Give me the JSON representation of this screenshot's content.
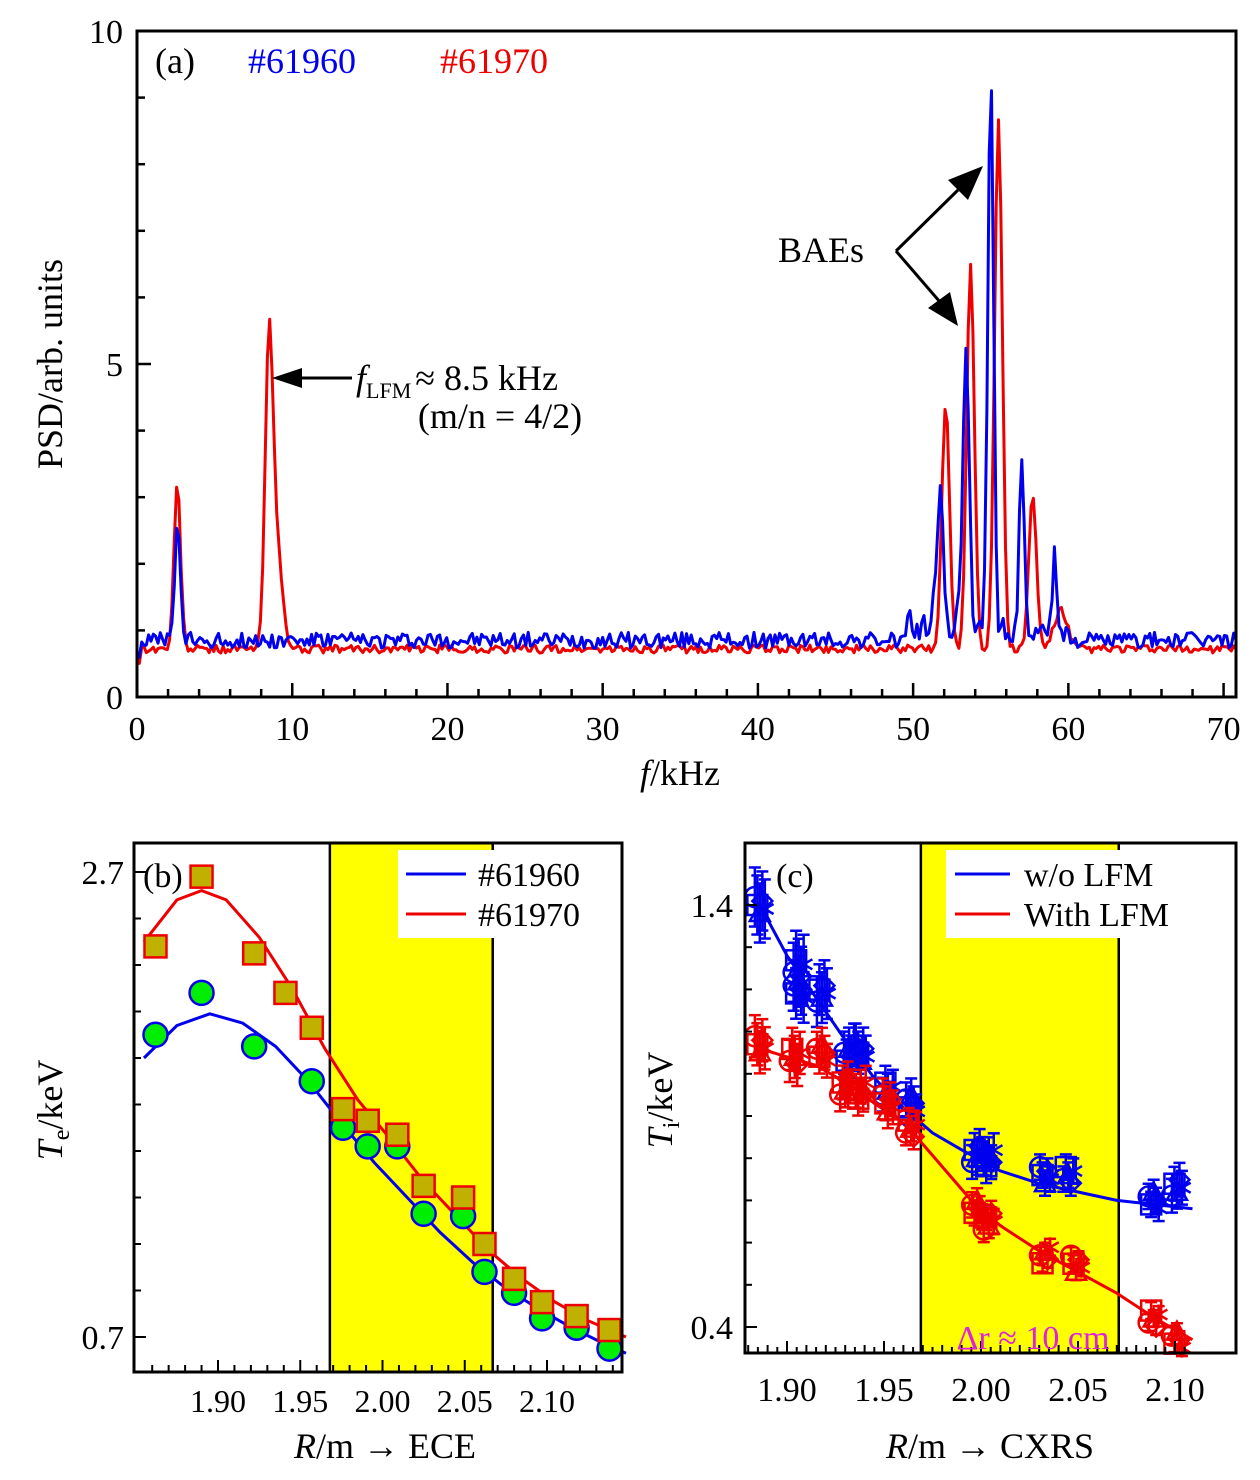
{
  "colors": {
    "blue": "#0000ee",
    "red": "#ee0000",
    "highlight": "#ffff00",
    "green_marker": "#00ee00",
    "square_fill": "#c0b000",
    "annotation_magenta": "#e020e0"
  },
  "chart_data": [
    {
      "id": "a",
      "type": "line",
      "panel_label": "(a)",
      "title": "",
      "xlabel": "f/kHz",
      "ylabel": "PSD/arb. units",
      "xlim": [
        0,
        70.8
      ],
      "ylim": [
        0,
        10
      ],
      "xticks": [
        0,
        10,
        20,
        30,
        40,
        50,
        60,
        70
      ],
      "xtick_labels": [
        "0",
        "10",
        "20",
        "30",
        "40",
        "50",
        "60",
        "70"
      ],
      "yticks": [
        0,
        5,
        10
      ],
      "ytick_labels": [
        "0",
        "5",
        "10"
      ],
      "grid": false,
      "legend_placement": "top-left (colored text)",
      "legend": [
        {
          "name": "#61960",
          "color": "#0000ee"
        },
        {
          "name": "#61970",
          "color": "#ee0000"
        }
      ],
      "annotations": [
        {
          "text_main": "f",
          "text_sub": "LFM",
          "text_rest": "≈ 8.5 kHz",
          "text_line2": "(m/n = 4/2)",
          "points_to_x": 8.5,
          "points_to_y": 5.0
        },
        {
          "text": "BAEs",
          "points_to": [
            [
              55.0,
              7.8
            ],
            [
              53.5,
              5.6
            ]
          ]
        }
      ],
      "series": [
        {
          "name": "#61960",
          "color": "#0000ee",
          "baseline": 0.85,
          "noise": 0.12,
          "peaks": [
            {
              "x": 2.6,
              "y": 2.6,
              "w": 0.25
            },
            {
              "x": 51.5,
              "y": 1.6,
              "w": 0.3
            },
            {
              "x": 51.8,
              "y": 2.9,
              "w": 0.2
            },
            {
              "x": 53.4,
              "y": 4.9,
              "w": 0.3
            },
            {
              "x": 55.0,
              "y": 9.3,
              "w": 0.25
            },
            {
              "x": 57.0,
              "y": 3.5,
              "w": 0.22
            },
            {
              "x": 59.1,
              "y": 1.9,
              "w": 0.18
            }
          ]
        },
        {
          "name": "#61970",
          "color": "#ee0000",
          "baseline": 0.72,
          "noise": 0.06,
          "peaks": [
            {
              "x": 2.6,
              "y": 3.2,
              "w": 0.3
            },
            {
              "x": 8.5,
              "y": 5.15,
              "w": 0.35
            },
            {
              "x": 9.0,
              "y": 2.2,
              "w": 0.5
            },
            {
              "x": 52.1,
              "y": 4.4,
              "w": 0.35
            },
            {
              "x": 53.7,
              "y": 6.5,
              "w": 0.35
            },
            {
              "x": 55.5,
              "y": 8.7,
              "w": 0.35
            },
            {
              "x": 57.7,
              "y": 3.0,
              "w": 0.35
            },
            {
              "x": 59.5,
              "y": 1.3,
              "w": 0.6
            }
          ]
        }
      ]
    },
    {
      "id": "b",
      "type": "scatter",
      "panel_label": "(b)",
      "xlabel": "R/m → ECE",
      "ylabel": "Te/keV",
      "xlim": [
        1.855,
        2.148
      ],
      "ylim": [
        0.55,
        2.78
      ],
      "xticks": [
        1.9,
        1.95,
        2.0,
        2.05,
        2.1
      ],
      "xtick_labels": [
        "1.90",
        "1.95",
        "2.00",
        "2.05",
        "2.10"
      ],
      "yticks": [
        0.7,
        2.7
      ],
      "ytick_labels": [
        "0.7",
        "2.7"
      ],
      "highlight_band_x": [
        1.968,
        2.067
      ],
      "legend_placement": "top-right",
      "legend": [
        {
          "name": "#61960",
          "color": "#0000ee"
        },
        {
          "name": "#61970",
          "color": "#ee0000"
        }
      ],
      "series": [
        {
          "name": "#61960",
          "marker": "circle",
          "color": "#0000ee",
          "fill": "#00ee00",
          "points": [
            [
              1.862,
              2.0
            ],
            [
              1.89,
              2.18
            ],
            [
              1.922,
              1.95
            ],
            [
              1.957,
              1.8
            ],
            [
              1.976,
              1.6
            ],
            [
              1.991,
              1.52
            ],
            [
              2.009,
              1.52
            ],
            [
              2.025,
              1.23
            ],
            [
              2.049,
              1.22
            ],
            [
              2.062,
              0.98
            ],
            [
              2.08,
              0.89
            ],
            [
              2.097,
              0.78
            ],
            [
              2.118,
              0.74
            ],
            [
              2.138,
              0.65
            ]
          ],
          "fit": [
            [
              1.855,
              1.9
            ],
            [
              1.875,
              2.04
            ],
            [
              1.895,
              2.09
            ],
            [
              1.915,
              2.05
            ],
            [
              1.935,
              1.95
            ],
            [
              1.955,
              1.8
            ],
            [
              1.975,
              1.62
            ],
            [
              1.995,
              1.45
            ],
            [
              2.015,
              1.3
            ],
            [
              2.035,
              1.15
            ],
            [
              2.055,
              1.02
            ],
            [
              2.075,
              0.91
            ],
            [
              2.095,
              0.82
            ],
            [
              2.115,
              0.74
            ],
            [
              2.135,
              0.67
            ],
            [
              2.148,
              0.63
            ]
          ]
        },
        {
          "name": "#61970",
          "marker": "square",
          "color": "#ee0000",
          "fill": "#c0b000",
          "points": [
            [
              1.862,
              2.38
            ],
            [
              1.89,
              2.68
            ],
            [
              1.922,
              2.35
            ],
            [
              1.941,
              2.18
            ],
            [
              1.957,
              2.03
            ],
            [
              1.976,
              1.68
            ],
            [
              1.991,
              1.63
            ],
            [
              2.009,
              1.57
            ],
            [
              2.025,
              1.35
            ],
            [
              2.049,
              1.3
            ],
            [
              2.062,
              1.1
            ],
            [
              2.08,
              0.95
            ],
            [
              2.097,
              0.85
            ],
            [
              2.118,
              0.79
            ],
            [
              2.138,
              0.73
            ]
          ],
          "fit": [
            [
              1.855,
              2.4
            ],
            [
              1.875,
              2.58
            ],
            [
              1.89,
              2.62
            ],
            [
              1.905,
              2.58
            ],
            [
              1.925,
              2.42
            ],
            [
              1.945,
              2.2
            ],
            [
              1.965,
              1.94
            ],
            [
              1.985,
              1.72
            ],
            [
              2.005,
              1.55
            ],
            [
              2.025,
              1.37
            ],
            [
              2.045,
              1.22
            ],
            [
              2.065,
              1.07
            ],
            [
              2.085,
              0.95
            ],
            [
              2.105,
              0.85
            ],
            [
              2.125,
              0.77
            ],
            [
              2.148,
              0.7
            ]
          ]
        }
      ]
    },
    {
      "id": "c",
      "type": "scatter",
      "panel_label": "(c)",
      "xlabel": "R/m → CXRS",
      "ylabel": "Ti/keV",
      "xlim": [
        1.879,
        2.109
      ],
      "ylim": [
        0.35,
        1.52
      ],
      "xticks": [
        1.9,
        1.95,
        2.0,
        2.05,
        2.1
      ],
      "xtick_labels": [
        "1.90",
        "1.95",
        "2.00",
        "2.05",
        "2.10"
      ],
      "yticks": [
        0.4,
        1.4
      ],
      "ytick_labels": [
        "0.4",
        "1.4"
      ],
      "highlight_band_x": [
        1.969,
        2.071
      ],
      "annotation": {
        "text": "Δr ≈ 10 cm",
        "color": "#e020e0"
      },
      "legend_placement": "top-right",
      "legend": [
        {
          "name": "w/o LFM",
          "color": "#0000ee"
        },
        {
          "name": "With LFM",
          "color": "#ee0000"
        }
      ],
      "series": [
        {
          "name": "w/o LFM",
          "color": "#0000ee",
          "markers": [
            "circle",
            "square",
            "triangle",
            "diamond",
            "star"
          ],
          "points": [
            [
              1.886,
              1.4,
              0.07
            ],
            [
              1.906,
              1.25,
              0.07
            ],
            [
              1.906,
              1.2,
              0.06
            ],
            [
              1.918,
              1.19,
              0.06
            ],
            [
              1.932,
              1.05,
              0.05
            ],
            [
              1.938,
              1.05,
              0.05
            ],
            [
              1.952,
              0.96,
              0.04
            ],
            [
              1.964,
              0.93,
              0.04
            ],
            [
              1.998,
              0.81,
              0.04
            ],
            [
              2.004,
              0.8,
              0.04
            ],
            [
              2.033,
              0.76,
              0.03
            ],
            [
              2.045,
              0.76,
              0.03
            ],
            [
              2.089,
              0.7,
              0.03
            ],
            [
              2.101,
              0.73,
              0.04
            ]
          ],
          "fit": [
            [
              1.886,
              1.4
            ],
            [
              1.9,
              1.28
            ],
            [
              1.915,
              1.18
            ],
            [
              1.93,
              1.08
            ],
            [
              1.945,
              0.99
            ],
            [
              1.96,
              0.92
            ],
            [
              1.975,
              0.86
            ],
            [
              1.99,
              0.82
            ],
            [
              2.01,
              0.77
            ],
            [
              2.03,
              0.74
            ],
            [
              2.05,
              0.72
            ],
            [
              2.07,
              0.7
            ],
            [
              2.09,
              0.69
            ],
            [
              2.109,
              0.68
            ]
          ]
        },
        {
          "name": "With LFM",
          "color": "#ee0000",
          "markers": [
            "circle",
            "square",
            "triangle",
            "diamond",
            "star"
          ],
          "points": [
            [
              1.886,
              1.07,
              0.05
            ],
            [
              1.904,
              1.04,
              0.05
            ],
            [
              1.918,
              1.05,
              0.04
            ],
            [
              1.93,
              0.97,
              0.04
            ],
            [
              1.938,
              0.96,
              0.04
            ],
            [
              1.952,
              0.93,
              0.04
            ],
            [
              1.964,
              0.87,
              0.03
            ],
            [
              1.998,
              0.68,
              0.03
            ],
            [
              2.004,
              0.65,
              0.03
            ],
            [
              2.033,
              0.57,
              0.02
            ],
            [
              2.049,
              0.55,
              0.02
            ],
            [
              2.089,
              0.42,
              0.02
            ],
            [
              2.101,
              0.37,
              0.02
            ]
          ],
          "fit": [
            [
              1.886,
              1.06
            ],
            [
              1.9,
              1.04
            ],
            [
              1.915,
              1.02
            ],
            [
              1.93,
              0.98
            ],
            [
              1.945,
              0.93
            ],
            [
              1.958,
              0.89
            ],
            [
              1.965,
              0.86
            ],
            [
              1.98,
              0.78
            ],
            [
              1.995,
              0.7
            ],
            [
              2.01,
              0.64
            ],
            [
              2.03,
              0.58
            ],
            [
              2.05,
              0.53
            ],
            [
              2.07,
              0.48
            ],
            [
              2.09,
              0.42
            ],
            [
              2.109,
              0.37
            ]
          ]
        }
      ]
    }
  ]
}
